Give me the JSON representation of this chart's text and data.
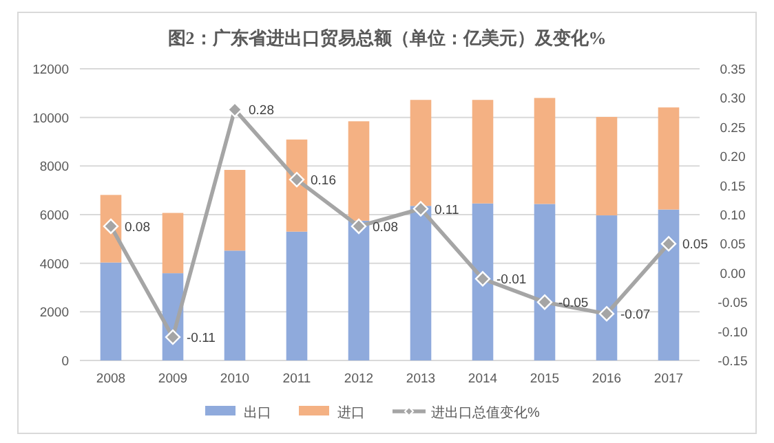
{
  "chart_data": {
    "type": "bar",
    "title": "图2：广东省进出口贸易总额（单位：亿美元）及变化%",
    "categories": [
      "2008",
      "2009",
      "2010",
      "2011",
      "2012",
      "2013",
      "2014",
      "2015",
      "2016",
      "2017"
    ],
    "stacked": true,
    "series": [
      {
        "name": "出口",
        "color": "#8faadc",
        "values": [
          4030,
          3590,
          4520,
          5300,
          5750,
          6360,
          6460,
          6440,
          5970,
          6210
        ]
      },
      {
        "name": "进口",
        "color": "#f4b183",
        "values": [
          2780,
          2480,
          3320,
          3790,
          4090,
          4360,
          4260,
          4360,
          4050,
          4200
        ]
      },
      {
        "name": "进出口总值变化%",
        "type": "line",
        "axis": "y2",
        "color": "#a5a5a5",
        "marker": "diamond",
        "values": [
          0.08,
          -0.11,
          0.28,
          0.16,
          0.08,
          0.11,
          -0.01,
          -0.05,
          -0.07,
          0.05
        ],
        "value_labels": [
          "0.08",
          "-0.11",
          "0.28",
          "0.16",
          "0.08",
          "0.11",
          "-0.01",
          "-0.05",
          "-0.07",
          "0.05"
        ]
      }
    ],
    "ylim": [
      0,
      12000
    ],
    "yticks": [
      0,
      2000,
      4000,
      6000,
      8000,
      10000,
      12000
    ],
    "y2lim": [
      -0.15,
      0.35
    ],
    "y2ticks": [
      {
        "value": -0.15,
        "label": "-0.15"
      },
      {
        "value": -0.1,
        "label": "-0.10"
      },
      {
        "value": -0.05,
        "label": "-0.05"
      },
      {
        "value": 0,
        "label": "0.00"
      },
      {
        "value": 0.05,
        "label": "0.05"
      },
      {
        "value": 0.1,
        "label": "0.10"
      },
      {
        "value": 0.15,
        "label": "0.15"
      },
      {
        "value": 0.2,
        "label": "0.20"
      },
      {
        "value": 0.25,
        "label": "0.25"
      },
      {
        "value": 0.3,
        "label": "0.30"
      },
      {
        "value": 0.35,
        "label": "0.35"
      }
    ],
    "grid": "y",
    "legend": "bottom"
  }
}
